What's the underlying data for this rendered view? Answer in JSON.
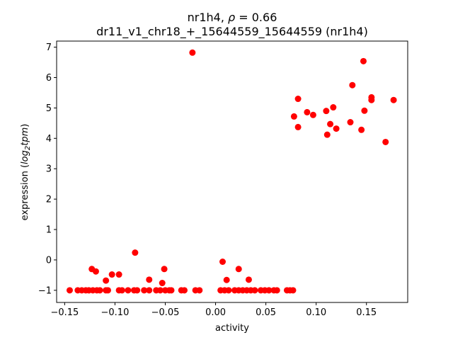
{
  "chart_data": {
    "type": "scatter",
    "title_line1_prefix": "nr1h4, ",
    "title_line1_rho": "ρ",
    "title_line1_suffix": " = 0.66",
    "title_line2": "dr11_v1_chr18_+_15644559_15644559 (nr1h4)",
    "xlabel": "activity",
    "ylabel_prefix": "expression (",
    "ylabel_log": "log",
    "ylabel_sub": "2",
    "ylabel_tpm": "tpm",
    "ylabel_suffix": ")",
    "xlim": [
      -0.158,
      0.191
    ],
    "ylim": [
      -1.4,
      7.2
    ],
    "xticks": [
      -0.15,
      -0.1,
      -0.05,
      0.0,
      0.05,
      0.1,
      0.15
    ],
    "xtick_labels": [
      "−0.15",
      "−0.10",
      "−0.05",
      "0.00",
      "0.05",
      "0.10",
      "0.15"
    ],
    "yticks": [
      -1,
      0,
      1,
      2,
      3,
      4,
      5,
      6,
      7
    ],
    "ytick_labels": [
      "−1",
      "0",
      "1",
      "2",
      "3",
      "4",
      "5",
      "6",
      "7"
    ],
    "marker_color": "#ff0000",
    "grid": false,
    "points": [
      {
        "x": -0.145,
        "y": -1.0
      },
      {
        "x": -0.137,
        "y": -1.0
      },
      {
        "x": -0.133,
        "y": -1.0
      },
      {
        "x": -0.129,
        "y": -1.0
      },
      {
        "x": -0.126,
        "y": -1.0
      },
      {
        "x": -0.122,
        "y": -1.0
      },
      {
        "x": -0.118,
        "y": -1.0
      },
      {
        "x": -0.115,
        "y": -1.0
      },
      {
        "x": -0.109,
        "y": -1.0
      },
      {
        "x": -0.107,
        "y": -1.0
      },
      {
        "x": -0.096,
        "y": -1.0
      },
      {
        "x": -0.093,
        "y": -1.0
      },
      {
        "x": -0.087,
        "y": -1.0
      },
      {
        "x": -0.081,
        "y": -1.0
      },
      {
        "x": -0.078,
        "y": -1.0
      },
      {
        "x": -0.071,
        "y": -1.0
      },
      {
        "x": -0.066,
        "y": -1.0
      },
      {
        "x": -0.059,
        "y": -1.0
      },
      {
        "x": -0.055,
        "y": -1.0
      },
      {
        "x": -0.05,
        "y": -1.0
      },
      {
        "x": -0.046,
        "y": -1.0
      },
      {
        "x": -0.044,
        "y": -1.0
      },
      {
        "x": -0.034,
        "y": -1.0
      },
      {
        "x": -0.031,
        "y": -1.0
      },
      {
        "x": -0.02,
        "y": -1.0
      },
      {
        "x": -0.016,
        "y": -1.0
      },
      {
        "x": 0.005,
        "y": -1.0
      },
      {
        "x": 0.009,
        "y": -1.0
      },
      {
        "x": 0.013,
        "y": -1.0
      },
      {
        "x": 0.019,
        "y": -1.0
      },
      {
        "x": 0.023,
        "y": -1.0
      },
      {
        "x": 0.027,
        "y": -1.0
      },
      {
        "x": 0.031,
        "y": -1.0
      },
      {
        "x": 0.035,
        "y": -1.0
      },
      {
        "x": 0.039,
        "y": -1.0
      },
      {
        "x": 0.045,
        "y": -1.0
      },
      {
        "x": 0.049,
        "y": -1.0
      },
      {
        "x": 0.053,
        "y": -1.0
      },
      {
        "x": 0.058,
        "y": -1.0
      },
      {
        "x": 0.061,
        "y": -1.0
      },
      {
        "x": 0.071,
        "y": -1.0
      },
      {
        "x": 0.074,
        "y": -1.0
      },
      {
        "x": 0.077,
        "y": -1.0
      },
      {
        "x": -0.123,
        "y": -0.3
      },
      {
        "x": -0.119,
        "y": -0.38
      },
      {
        "x": -0.109,
        "y": -0.68
      },
      {
        "x": -0.103,
        "y": -0.48
      },
      {
        "x": -0.096,
        "y": -0.48
      },
      {
        "x": -0.08,
        "y": 0.24
      },
      {
        "x": -0.066,
        "y": -0.65
      },
      {
        "x": -0.053,
        "y": -0.76
      },
      {
        "x": -0.051,
        "y": -0.3
      },
      {
        "x": 0.007,
        "y": -0.06
      },
      {
        "x": 0.011,
        "y": -0.66
      },
      {
        "x": 0.023,
        "y": -0.3
      },
      {
        "x": 0.033,
        "y": -0.65
      },
      {
        "x": -0.023,
        "y": 6.82
      },
      {
        "x": 0.078,
        "y": 4.72
      },
      {
        "x": 0.082,
        "y": 5.3
      },
      {
        "x": 0.082,
        "y": 4.37
      },
      {
        "x": 0.091,
        "y": 4.86
      },
      {
        "x": 0.097,
        "y": 4.77
      },
      {
        "x": 0.11,
        "y": 4.9
      },
      {
        "x": 0.111,
        "y": 4.12
      },
      {
        "x": 0.114,
        "y": 4.47
      },
      {
        "x": 0.117,
        "y": 5.02
      },
      {
        "x": 0.12,
        "y": 4.32
      },
      {
        "x": 0.134,
        "y": 4.53
      },
      {
        "x": 0.136,
        "y": 5.75
      },
      {
        "x": 0.145,
        "y": 4.28
      },
      {
        "x": 0.147,
        "y": 6.54
      },
      {
        "x": 0.148,
        "y": 4.91
      },
      {
        "x": 0.155,
        "y": 5.35
      },
      {
        "x": 0.155,
        "y": 5.26
      },
      {
        "x": 0.169,
        "y": 3.88
      },
      {
        "x": 0.177,
        "y": 5.26
      }
    ]
  }
}
